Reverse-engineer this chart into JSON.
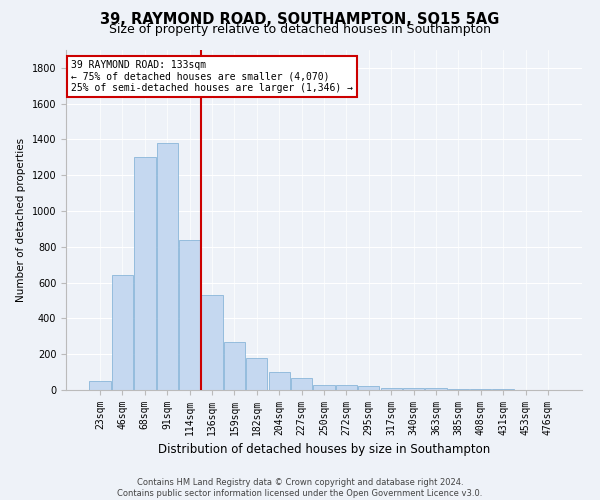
{
  "title1": "39, RAYMOND ROAD, SOUTHAMPTON, SO15 5AG",
  "title2": "Size of property relative to detached houses in Southampton",
  "xlabel": "Distribution of detached houses by size in Southampton",
  "ylabel": "Number of detached properties",
  "categories": [
    "23sqm",
    "46sqm",
    "68sqm",
    "91sqm",
    "114sqm",
    "136sqm",
    "159sqm",
    "182sqm",
    "204sqm",
    "227sqm",
    "250sqm",
    "272sqm",
    "295sqm",
    "317sqm",
    "340sqm",
    "363sqm",
    "385sqm",
    "408sqm",
    "431sqm",
    "453sqm",
    "476sqm"
  ],
  "values": [
    50,
    640,
    1300,
    1380,
    840,
    530,
    270,
    180,
    100,
    65,
    30,
    30,
    20,
    10,
    10,
    10,
    5,
    5,
    5,
    2,
    2
  ],
  "bar_color": "#c5d8f0",
  "bar_edge_color": "#7aadd4",
  "vline_index": 5,
  "annotation_title": "39 RAYMOND ROAD: 133sqm",
  "annotation_line1": "← 75% of detached houses are smaller (4,070)",
  "annotation_line2": "25% of semi-detached houses are larger (1,346) →",
  "annotation_box_color": "#ffffff",
  "annotation_box_edge": "#cc0000",
  "vline_color": "#cc0000",
  "footer1": "Contains HM Land Registry data © Crown copyright and database right 2024.",
  "footer2": "Contains public sector information licensed under the Open Government Licence v3.0.",
  "ylim": [
    0,
    1900
  ],
  "yticks": [
    0,
    200,
    400,
    600,
    800,
    1000,
    1200,
    1400,
    1600,
    1800
  ],
  "bg_color": "#eef2f8",
  "grid_color": "#ffffff",
  "title1_fontsize": 10.5,
  "title2_fontsize": 9,
  "xlabel_fontsize": 8.5,
  "ylabel_fontsize": 7.5,
  "tick_fontsize": 7,
  "annotation_fontsize": 7,
  "footer_fontsize": 6
}
